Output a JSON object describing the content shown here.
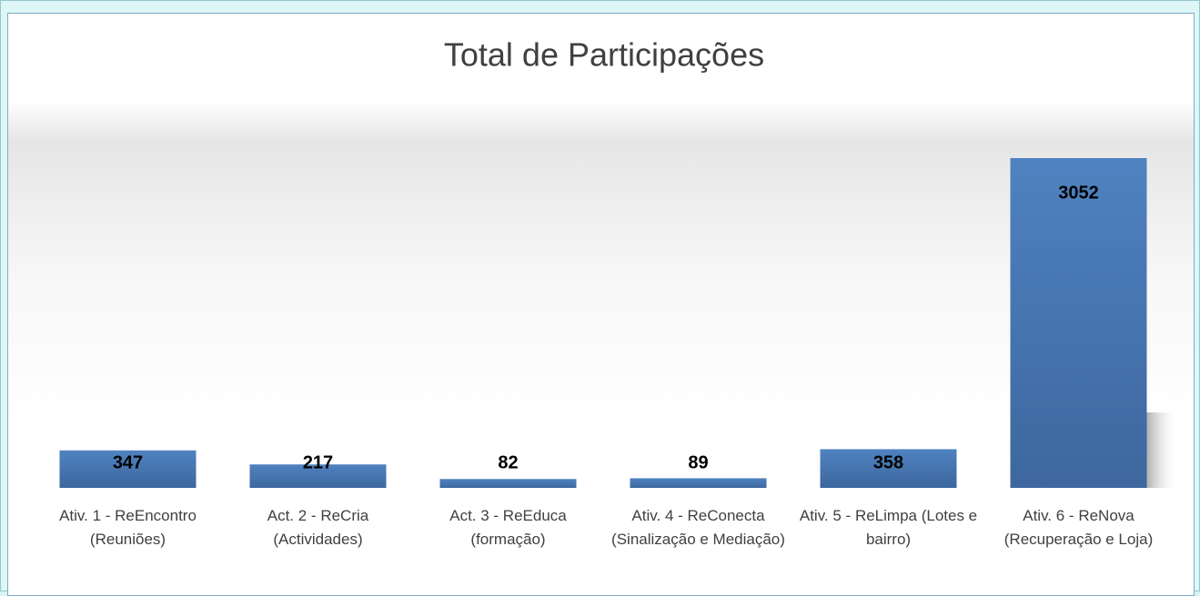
{
  "chart_data": {
    "type": "bar",
    "title": "Total de Participações",
    "categories": [
      "Ativ. 1 - ReEncontro (Reuniões)",
      "Act. 2 - ReCria (Actividades)",
      "Act. 3 - ReEduca (formação)",
      "Ativ. 4 - ReConecta (Sinalização e Mediação)",
      "Ativ. 5 - ReLimpa (Lotes e bairro)",
      "Ativ. 6 - ReNova (Recuperação e Loja)"
    ],
    "values": [
      347,
      217,
      82,
      89,
      358,
      3052
    ],
    "color": "#4a7ab8"
  }
}
